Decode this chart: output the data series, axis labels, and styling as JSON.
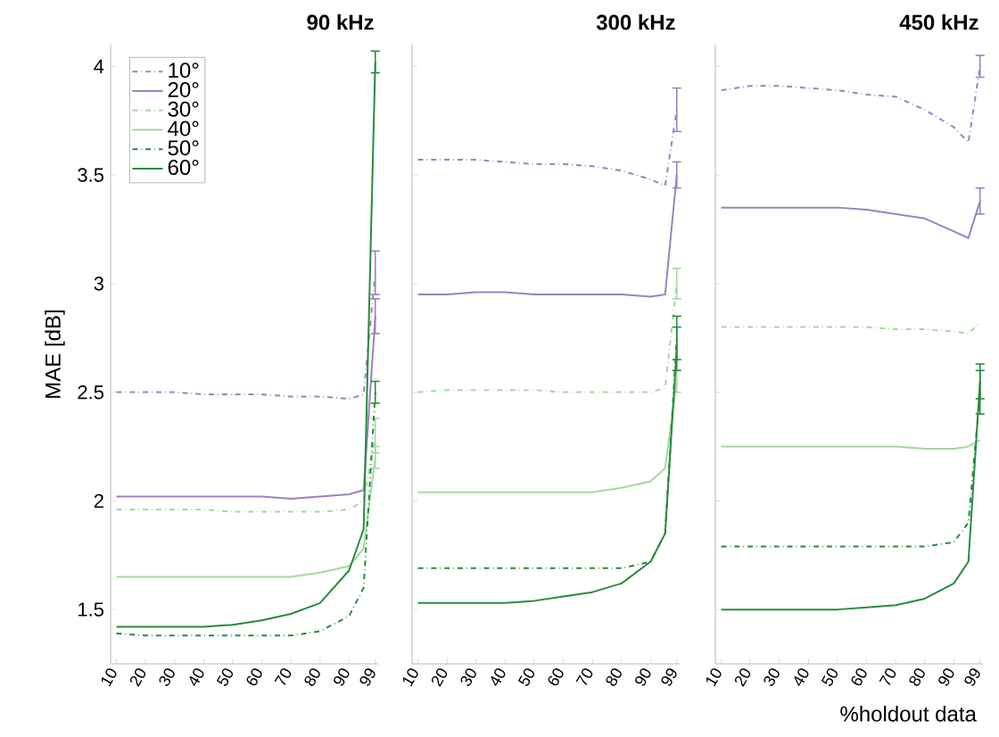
{
  "chart_data": [
    {
      "type": "line",
      "title": "90 kHz",
      "ylabel": "MAE [dB]",
      "legend": "top left",
      "x": [
        10,
        20,
        30,
        40,
        50,
        60,
        70,
        80,
        90,
        95,
        99
      ],
      "xlim": [
        8,
        100
      ],
      "xticks": [
        10,
        20,
        30,
        40,
        50,
        60,
        70,
        80,
        90,
        99
      ],
      "ylim": [
        1.25,
        4.1
      ],
      "yticks": [
        1.5,
        2,
        2.5,
        3,
        3.5,
        4
      ],
      "series": [
        {
          "name": "10°",
          "color": "#9b82c0",
          "line_style": "dotted",
          "values": [
            2.5,
            2.5,
            2.5,
            2.49,
            2.49,
            2.49,
            2.48,
            2.48,
            2.47,
            2.49,
            3.05
          ],
          "errors": [
            null,
            null,
            null,
            null,
            null,
            null,
            null,
            null,
            null,
            null,
            0.1
          ]
        },
        {
          "name": "20°",
          "color": "#9b82c0",
          "line_style": "solid",
          "values": [
            2.02,
            2.02,
            2.02,
            2.02,
            2.02,
            2.02,
            2.01,
            2.02,
            2.03,
            2.05,
            2.85
          ],
          "errors": [
            null,
            null,
            null,
            null,
            null,
            null,
            null,
            null,
            null,
            null,
            0.08
          ]
        },
        {
          "name": "30°",
          "color": "#a6d79f",
          "line_style": "dotted",
          "values": [
            1.96,
            1.96,
            1.96,
            1.96,
            1.95,
            1.95,
            1.95,
            1.95,
            1.96,
            2.0,
            2.3
          ],
          "errors": [
            null,
            null,
            null,
            null,
            null,
            null,
            null,
            null,
            null,
            null,
            0.08
          ]
        },
        {
          "name": "40°",
          "color": "#a6d79f",
          "line_style": "solid",
          "values": [
            1.65,
            1.65,
            1.65,
            1.65,
            1.65,
            1.65,
            1.65,
            1.67,
            1.7,
            1.78,
            2.2
          ],
          "errors": [
            null,
            null,
            null,
            null,
            null,
            null,
            null,
            null,
            null,
            null,
            0.05
          ]
        },
        {
          "name": "50°",
          "color": "#2a8a3e",
          "line_style": "dotted",
          "values": [
            1.39,
            1.38,
            1.38,
            1.38,
            1.38,
            1.38,
            1.38,
            1.4,
            1.47,
            1.6,
            2.5
          ],
          "errors": [
            null,
            null,
            null,
            null,
            null,
            null,
            null,
            null,
            null,
            null,
            0.05
          ]
        },
        {
          "name": "60°",
          "color": "#2a8a3e",
          "line_style": "solid",
          "values": [
            1.42,
            1.42,
            1.42,
            1.42,
            1.43,
            1.45,
            1.48,
            1.53,
            1.68,
            1.87,
            4.02
          ],
          "errors": [
            null,
            null,
            null,
            null,
            null,
            null,
            null,
            null,
            null,
            null,
            0.05
          ]
        }
      ]
    },
    {
      "type": "line",
      "title": "300 kHz",
      "tick_labels": "x",
      "x": [
        10,
        20,
        30,
        40,
        50,
        60,
        70,
        80,
        90,
        95,
        99
      ],
      "xlim": [
        8,
        100
      ],
      "xticks": [
        10,
        20,
        30,
        40,
        50,
        60,
        70,
        80,
        90,
        99
      ],
      "ylim": [
        1.25,
        4.1
      ],
      "yticks": [
        1.5,
        2,
        2.5,
        3,
        3.5,
        4
      ],
      "series": [
        {
          "color": "#9b82c0",
          "line_style": "dotted",
          "values": [
            3.57,
            3.57,
            3.57,
            3.56,
            3.55,
            3.55,
            3.54,
            3.52,
            3.48,
            3.45,
            3.8
          ],
          "errors": [
            null,
            null,
            null,
            null,
            null,
            null,
            null,
            null,
            null,
            null,
            0.1
          ]
        },
        {
          "color": "#9b82c0",
          "line_style": "solid",
          "values": [
            2.95,
            2.95,
            2.96,
            2.96,
            2.95,
            2.95,
            2.95,
            2.95,
            2.94,
            2.95,
            3.5
          ],
          "errors": [
            null,
            null,
            null,
            null,
            null,
            null,
            null,
            null,
            null,
            null,
            0.06
          ]
        },
        {
          "color": "#a6d79f",
          "line_style": "dotted",
          "values": [
            2.5,
            2.51,
            2.51,
            2.51,
            2.51,
            2.5,
            2.5,
            2.5,
            2.5,
            2.52,
            3.0
          ],
          "errors": [
            null,
            null,
            null,
            null,
            null,
            null,
            null,
            null,
            null,
            null,
            0.07
          ]
        },
        {
          "color": "#a6d79f",
          "line_style": "solid",
          "values": [
            2.04,
            2.04,
            2.04,
            2.04,
            2.04,
            2.04,
            2.04,
            2.06,
            2.09,
            2.15,
            2.55
          ],
          "errors": [
            null,
            null,
            null,
            null,
            null,
            null,
            null,
            null,
            null,
            null,
            0.05
          ]
        },
        {
          "color": "#2a8a3e",
          "line_style": "dotted",
          "values": [
            1.69,
            1.69,
            1.69,
            1.69,
            1.69,
            1.69,
            1.69,
            1.69,
            1.72,
            1.85,
            2.75
          ],
          "errors": [
            null,
            null,
            null,
            null,
            null,
            null,
            null,
            null,
            null,
            null,
            0.1
          ]
        },
        {
          "color": "#2a8a3e",
          "line_style": "solid",
          "values": [
            1.53,
            1.53,
            1.53,
            1.53,
            1.54,
            1.56,
            1.58,
            1.62,
            1.72,
            1.85,
            2.7
          ],
          "errors": [
            null,
            null,
            null,
            null,
            null,
            null,
            null,
            null,
            null,
            null,
            0.1
          ]
        }
      ]
    },
    {
      "type": "line",
      "title": "450 kHz",
      "xlabel": "%holdout data",
      "tick_labels": "x",
      "x": [
        10,
        20,
        30,
        40,
        50,
        60,
        70,
        80,
        90,
        95,
        99
      ],
      "xlim": [
        8,
        100
      ],
      "xticks": [
        10,
        20,
        30,
        40,
        50,
        60,
        70,
        80,
        90,
        99
      ],
      "ylim": [
        1.25,
        4.1
      ],
      "yticks": [
        1.5,
        2,
        2.5,
        3,
        3.5,
        4
      ],
      "series": [
        {
          "color": "#9b82c0",
          "line_style": "dotted",
          "values": [
            3.89,
            3.91,
            3.91,
            3.9,
            3.89,
            3.87,
            3.86,
            3.8,
            3.72,
            3.65,
            4.0
          ],
          "errors": [
            null,
            null,
            null,
            null,
            null,
            null,
            null,
            null,
            null,
            null,
            0.05
          ]
        },
        {
          "color": "#9b82c0",
          "line_style": "solid",
          "values": [
            3.35,
            3.35,
            3.35,
            3.35,
            3.35,
            3.34,
            3.32,
            3.3,
            3.24,
            3.21,
            3.38
          ],
          "errors": [
            null,
            null,
            null,
            null,
            null,
            null,
            null,
            null,
            null,
            null,
            0.06
          ]
        },
        {
          "color": "#a6d79f",
          "line_style": "dotted",
          "values": [
            2.8,
            2.8,
            2.8,
            2.8,
            2.8,
            2.8,
            2.79,
            2.79,
            2.78,
            2.77,
            2.82
          ]
        },
        {
          "color": "#a6d79f",
          "line_style": "solid",
          "values": [
            2.25,
            2.25,
            2.25,
            2.25,
            2.25,
            2.25,
            2.25,
            2.24,
            2.24,
            2.25,
            2.28
          ]
        },
        {
          "color": "#2a8a3e",
          "line_style": "dotted",
          "values": [
            1.79,
            1.79,
            1.79,
            1.79,
            1.79,
            1.79,
            1.79,
            1.79,
            1.81,
            1.9,
            2.5
          ],
          "errors": [
            null,
            null,
            null,
            null,
            null,
            null,
            null,
            null,
            null,
            null,
            0.1
          ]
        },
        {
          "color": "#2a8a3e",
          "line_style": "solid",
          "values": [
            1.5,
            1.5,
            1.5,
            1.5,
            1.5,
            1.51,
            1.52,
            1.55,
            1.62,
            1.72,
            2.55
          ],
          "errors": [
            null,
            null,
            null,
            null,
            null,
            null,
            null,
            null,
            null,
            null,
            0.08
          ]
        }
      ]
    }
  ]
}
